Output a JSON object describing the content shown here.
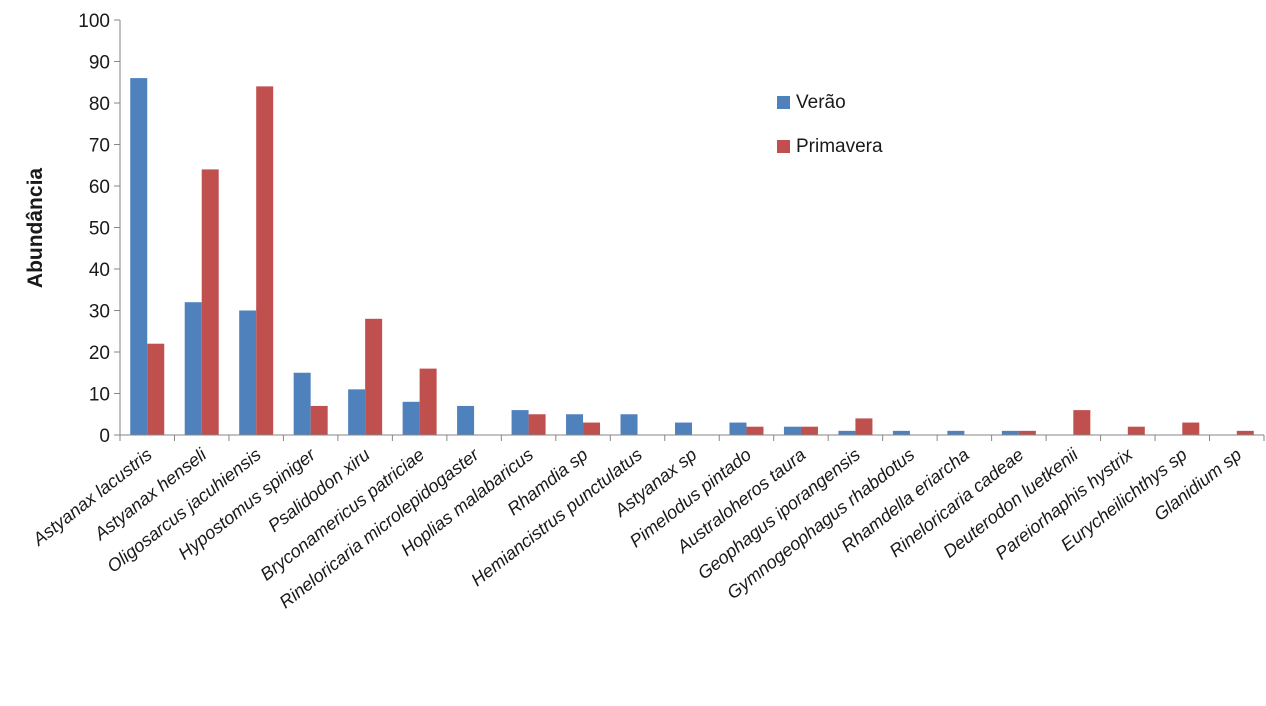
{
  "chart_data": {
    "type": "bar",
    "ylabel": "Abundância",
    "xlabel": "",
    "ylim": [
      0,
      100
    ],
    "yticks": [
      0,
      10,
      20,
      30,
      40,
      50,
      60,
      70,
      80,
      90,
      100
    ],
    "grid": false,
    "legend_position": "top-right",
    "categories": [
      "Astyanax lacustris",
      "Astyanax henseli",
      "Oligosarcus jacuhiensis",
      "Hypostomus spiniger",
      "Psalidodon xiru",
      "Bryconamericus patriciae",
      "Rineloricaria microlepidogaster",
      "Hoplias malabaricus",
      "Rhamdia sp",
      "Hemiancistrus punctulatus",
      "Astyanax sp",
      "Pimelodus pintado",
      "Australoheros taura",
      "Geophagus iporangensis",
      "Gymnogeophagus rhabdotus",
      "Rhamdella eriarcha",
      "Rineloricaria cadeae",
      "Deuterodon luetkenii",
      "Pareiorhaphis hystrix",
      "Eurycheilichthys sp",
      "Glanidium sp"
    ],
    "series": [
      {
        "name": "Verão",
        "color": "#4f81bd",
        "values": [
          86,
          32,
          30,
          15,
          11,
          8,
          7,
          6,
          5,
          5,
          3,
          3,
          2,
          1,
          1,
          1,
          1,
          0,
          0,
          0,
          0
        ]
      },
      {
        "name": "Primavera",
        "color": "#c0504d",
        "values": [
          22,
          64,
          84,
          7,
          28,
          16,
          0,
          5,
          3,
          0,
          0,
          2,
          2,
          4,
          0,
          0,
          1,
          6,
          2,
          3,
          1
        ]
      }
    ]
  }
}
